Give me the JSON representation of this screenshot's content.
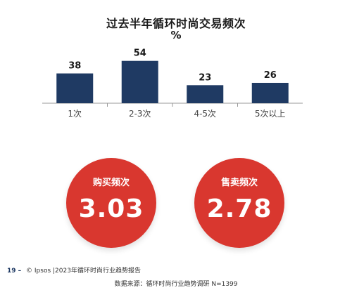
{
  "chart_data": {
    "type": "bar",
    "title": "过去半年循环时尚交易频次",
    "unit": "%",
    "categories": [
      "1次",
      "2-3次",
      "4-5次",
      "5次以上"
    ],
    "values": [
      38,
      54,
      23,
      26
    ],
    "ylim": [
      0,
      60
    ],
    "bar_color": "#1f3a63",
    "grid": false,
    "legend": "none"
  },
  "stats": [
    {
      "label": "购买频次",
      "value": "3.03"
    },
    {
      "label": "售卖频次",
      "value": "2.78"
    }
  ],
  "circle_color": "#d9372f",
  "footer": {
    "page_number": "19 –",
    "copyright": "© Ipsos |2023年循环时尚行业趋势报告",
    "source": "数据来源：循环时尚行业趋势调研 N=1399"
  }
}
